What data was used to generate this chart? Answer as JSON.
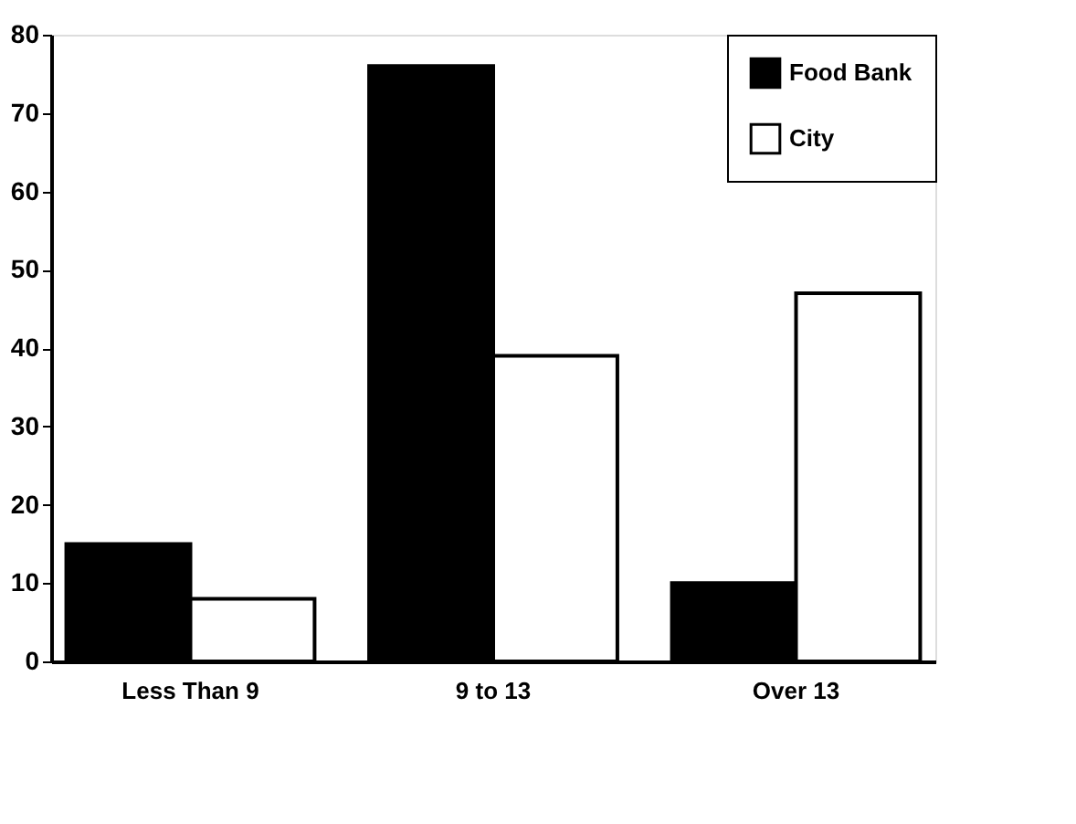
{
  "chart_data": {
    "type": "bar",
    "categories": [
      "Less Than 9",
      "9 to 13",
      "Over 13"
    ],
    "series": [
      {
        "name": "Food Bank",
        "color": "#000000",
        "values": [
          15,
          76,
          10
        ]
      },
      {
        "name": "City",
        "color": "#ffffff",
        "values": [
          8,
          39,
          47
        ]
      }
    ],
    "ylim": [
      0,
      80
    ],
    "yticks": [
      0,
      10,
      20,
      30,
      40,
      50,
      60,
      70,
      80
    ],
    "grid": false,
    "legend": "top right"
  }
}
